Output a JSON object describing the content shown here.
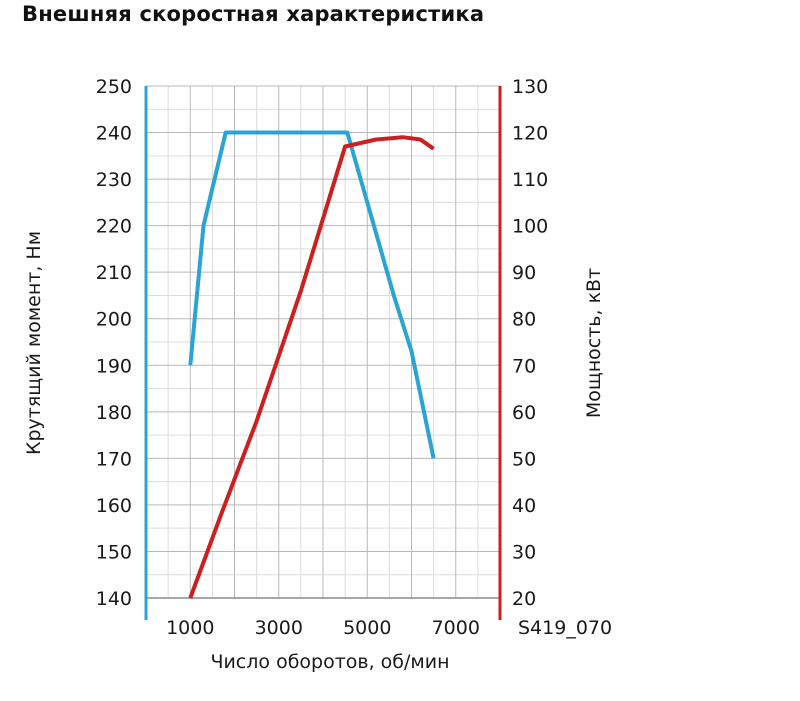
{
  "chart_data": {
    "type": "line",
    "title": "Внешняя скоростная характеристика",
    "xlabel": "Число оборотов, об/мин",
    "ylabel_left": "Крутящий момент, Нм",
    "ylabel_right": "Мощность, кВт",
    "figure_code": "S419_070",
    "xlim": [
      0,
      8000
    ],
    "ylim_left": [
      140,
      250
    ],
    "ylim_right": [
      20,
      130
    ],
    "x_ticks": [
      1000,
      3000,
      5000,
      7000
    ],
    "y_ticks_left": [
      140,
      150,
      160,
      170,
      180,
      190,
      200,
      210,
      220,
      230,
      240,
      250
    ],
    "y_ticks_right": [
      20,
      30,
      40,
      50,
      60,
      70,
      80,
      90,
      100,
      110,
      120,
      130
    ],
    "grid": true,
    "series": [
      {
        "axis": "left",
        "color": "#2aa3d6",
        "points": [
          [
            1000,
            190
          ],
          [
            1300,
            220
          ],
          [
            1800,
            240
          ],
          [
            4550,
            240
          ],
          [
            5000,
            225
          ],
          [
            5600,
            205
          ],
          [
            6000,
            193
          ],
          [
            6500,
            170
          ]
        ]
      },
      {
        "axis": "right",
        "color": "#cc1f1f",
        "points": [
          [
            1000,
            20
          ],
          [
            1700,
            38
          ],
          [
            2500,
            58
          ],
          [
            3500,
            86
          ],
          [
            4500,
            117
          ],
          [
            5200,
            118.5
          ],
          [
            5800,
            119
          ],
          [
            6200,
            118.5
          ],
          [
            6500,
            116.5
          ]
        ]
      }
    ]
  }
}
